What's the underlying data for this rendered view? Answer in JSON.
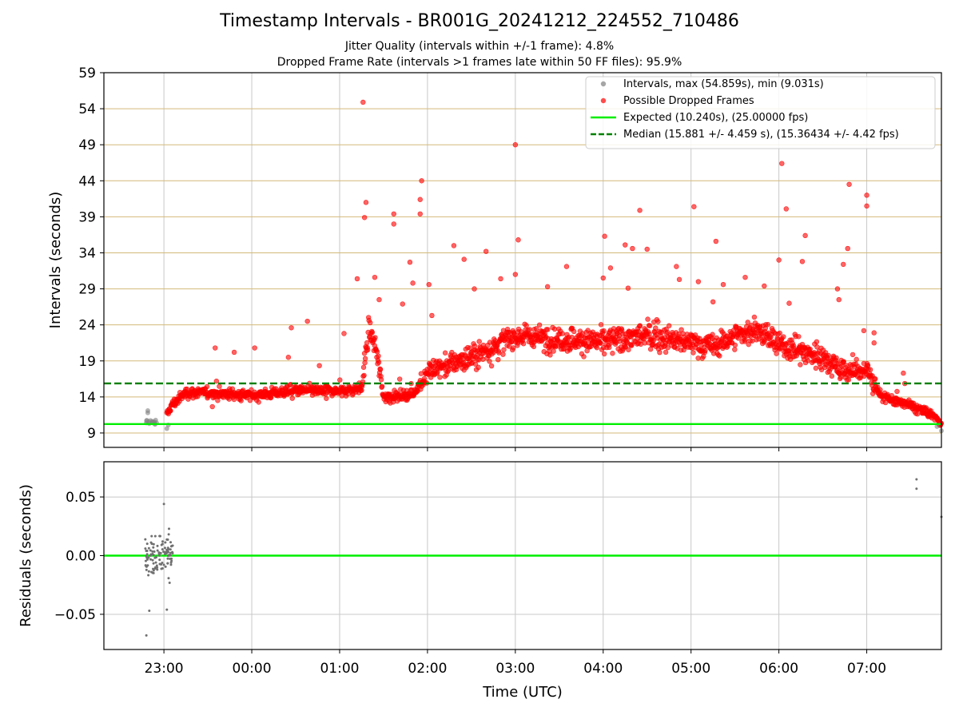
{
  "title": "Timestamp Intervals - BR001G_20241212_224552_710486",
  "subtitle_1": "Jitter Quality (intervals within +/-1 frame): 4.8%",
  "subtitle_2": "Dropped Frame Rate (intervals >1 frames late within 50 FF files): 95.9%",
  "colors": {
    "expected": "#00ee00",
    "median": "#008000",
    "dropped": "#ff0000",
    "intervals": "#808080",
    "hgrid_top": "#d4b97a",
    "grid": "#c8c8c8"
  },
  "chart_data": [
    {
      "type": "scatter",
      "panel": "intervals",
      "ylabel": "Intervals (seconds)",
      "xlabel": "",
      "xlim": [
        "22:19",
        "07:51"
      ],
      "ylim": [
        7,
        59
      ],
      "yticks": [
        9,
        14,
        19,
        24,
        29,
        34,
        39,
        44,
        49,
        54,
        59
      ],
      "xticks": [
        "23:00",
        "00:00",
        "01:00",
        "02:00",
        "03:00",
        "04:00",
        "05:00",
        "06:00",
        "07:00"
      ],
      "grid": true,
      "legend_position": "top-right",
      "legend": [
        "Intervals, max (54.859s), min (9.031s)",
        "Possible Dropped Frames",
        "Expected (10.240s), (25.00000 fps)",
        "Median (15.881 +/- 4.459 s), (15.36434 +/- 4.42 fps)"
      ],
      "lines": [
        {
          "name": "Expected (10.240s), (25.00000 fps)",
          "y": 10.24,
          "style": "solid"
        },
        {
          "name": "Median (15.881 +/- 4.459 s), (15.36434 +/- 4.42 fps)",
          "y": 15.881,
          "style": "dashed"
        }
      ],
      "band_trend": {
        "x": [
          "22:50",
          "22:55",
          "23:00",
          "23:05",
          "23:15",
          "23:30",
          "00:00",
          "00:30",
          "01:00",
          "01:15",
          "01:20",
          "01:25",
          "01:30",
          "01:50",
          "02:00",
          "02:30",
          "03:00",
          "03:30",
          "04:00",
          "04:30",
          "05:00",
          "05:15",
          "05:30",
          "05:45",
          "06:00",
          "06:30",
          "06:45",
          "07:00",
          "07:10",
          "07:30",
          "07:45",
          "07:51"
        ],
        "y": [
          10.3,
          10.3,
          10.5,
          12.8,
          14.6,
          14.6,
          14.2,
          14.9,
          14.8,
          15.2,
          23.5,
          20.5,
          14.0,
          14.3,
          17.5,
          19.5,
          22.5,
          22.0,
          21.7,
          22.5,
          21.5,
          21.0,
          22.5,
          23.3,
          21.2,
          19.5,
          17.5,
          17.8,
          14.0,
          12.8,
          11.5,
          10.4
        ]
      },
      "outliers": [
        {
          "x": "23:35",
          "y": 20.8
        },
        {
          "x": "23:48",
          "y": 20.2
        },
        {
          "x": "00:02",
          "y": 20.8
        },
        {
          "x": "00:25",
          "y": 19.5
        },
        {
          "x": "00:27",
          "y": 23.6
        },
        {
          "x": "00:38",
          "y": 24.5
        },
        {
          "x": "01:03",
          "y": 22.8
        },
        {
          "x": "01:12",
          "y": 30.4
        },
        {
          "x": "01:16",
          "y": 54.9
        },
        {
          "x": "01:17",
          "y": 38.9
        },
        {
          "x": "01:18",
          "y": 41.0
        },
        {
          "x": "01:24",
          "y": 30.6
        },
        {
          "x": "01:27",
          "y": 27.5
        },
        {
          "x": "01:37",
          "y": 39.4
        },
        {
          "x": "01:37",
          "y": 38.0
        },
        {
          "x": "01:43",
          "y": 26.9
        },
        {
          "x": "01:48",
          "y": 32.7
        },
        {
          "x": "01:50",
          "y": 29.8
        },
        {
          "x": "01:55",
          "y": 39.4
        },
        {
          "x": "01:55",
          "y": 41.4
        },
        {
          "x": "01:56",
          "y": 44.0
        },
        {
          "x": "02:01",
          "y": 29.6
        },
        {
          "x": "02:03",
          "y": 25.3
        },
        {
          "x": "02:18",
          "y": 35.0
        },
        {
          "x": "02:25",
          "y": 33.1
        },
        {
          "x": "02:32",
          "y": 29.0
        },
        {
          "x": "02:40",
          "y": 34.2
        },
        {
          "x": "02:50",
          "y": 30.4
        },
        {
          "x": "03:00",
          "y": 49.0
        },
        {
          "x": "03:02",
          "y": 35.8
        },
        {
          "x": "03:00",
          "y": 31.0
        },
        {
          "x": "03:22",
          "y": 29.3
        },
        {
          "x": "03:35",
          "y": 32.1
        },
        {
          "x": "04:01",
          "y": 36.3
        },
        {
          "x": "04:00",
          "y": 30.5
        },
        {
          "x": "04:05",
          "y": 31.9
        },
        {
          "x": "04:15",
          "y": 35.1
        },
        {
          "x": "04:17",
          "y": 29.1
        },
        {
          "x": "04:20",
          "y": 34.6
        },
        {
          "x": "04:25",
          "y": 39.9
        },
        {
          "x": "04:30",
          "y": 34.5
        },
        {
          "x": "04:50",
          "y": 32.1
        },
        {
          "x": "04:52",
          "y": 30.3
        },
        {
          "x": "05:02",
          "y": 40.4
        },
        {
          "x": "05:05",
          "y": 30.0
        },
        {
          "x": "05:15",
          "y": 27.2
        },
        {
          "x": "05:17",
          "y": 35.6
        },
        {
          "x": "05:22",
          "y": 29.6
        },
        {
          "x": "05:37",
          "y": 30.6
        },
        {
          "x": "05:50",
          "y": 29.4
        },
        {
          "x": "06:02",
          "y": 46.4
        },
        {
          "x": "06:00",
          "y": 33.0
        },
        {
          "x": "06:05",
          "y": 40.1
        },
        {
          "x": "06:07",
          "y": 27.0
        },
        {
          "x": "06:16",
          "y": 32.8
        },
        {
          "x": "06:18",
          "y": 36.4
        },
        {
          "x": "06:40",
          "y": 29.0
        },
        {
          "x": "06:41",
          "y": 27.5
        },
        {
          "x": "06:44",
          "y": 32.4
        },
        {
          "x": "06:47",
          "y": 34.6
        },
        {
          "x": "06:48",
          "y": 43.5
        },
        {
          "x": "06:58",
          "y": 23.2
        },
        {
          "x": "07:00",
          "y": 42.0
        },
        {
          "x": "07:00",
          "y": 40.5
        },
        {
          "x": "07:05",
          "y": 22.9
        },
        {
          "x": "07:05",
          "y": 21.5
        },
        {
          "x": "07:25",
          "y": 17.3
        }
      ],
      "normal_points": [
        {
          "x": "22:48",
          "y": 10.4
        },
        {
          "x": "22:49",
          "y": 11.8
        },
        {
          "x": "22:49",
          "y": 12.1
        },
        {
          "x": "22:50",
          "y": 10.3
        },
        {
          "x": "22:52",
          "y": 10.6
        },
        {
          "x": "22:54",
          "y": 10.2
        },
        {
          "x": "23:02",
          "y": 9.6
        },
        {
          "x": "23:03",
          "y": 10.1
        },
        {
          "x": "07:48",
          "y": 9.9
        },
        {
          "x": "07:51",
          "y": 9.3
        }
      ]
    },
    {
      "type": "scatter",
      "panel": "residuals",
      "ylabel": "Residuals (seconds)",
      "xlabel": "Time (UTC)",
      "xlim": [
        "22:19",
        "07:51"
      ],
      "ylim": [
        -0.08,
        0.08
      ],
      "yticks": [
        0.05,
        0.0,
        -0.05
      ],
      "ytick_labels": [
        "0.05",
        "0.00",
        "−0.05"
      ],
      "xticks": [
        "23:00",
        "00:00",
        "01:00",
        "02:00",
        "03:00",
        "04:00",
        "05:00",
        "06:00",
        "07:00"
      ],
      "grid": true,
      "line": {
        "y": 0.0,
        "style": "solid"
      },
      "cluster": {
        "x_range": [
          "22:47",
          "23:06"
        ],
        "y_range": [
          -0.068,
          0.046
        ]
      },
      "points": [
        {
          "x": "07:34",
          "y": 0.065
        },
        {
          "x": "07:34",
          "y": 0.057
        },
        {
          "x": "07:51",
          "y": 0.033
        },
        {
          "x": "22:48",
          "y": -0.068
        },
        {
          "x": "22:50",
          "y": -0.047
        },
        {
          "x": "23:00",
          "y": 0.044
        },
        {
          "x": "23:02",
          "y": -0.046
        }
      ]
    }
  ]
}
